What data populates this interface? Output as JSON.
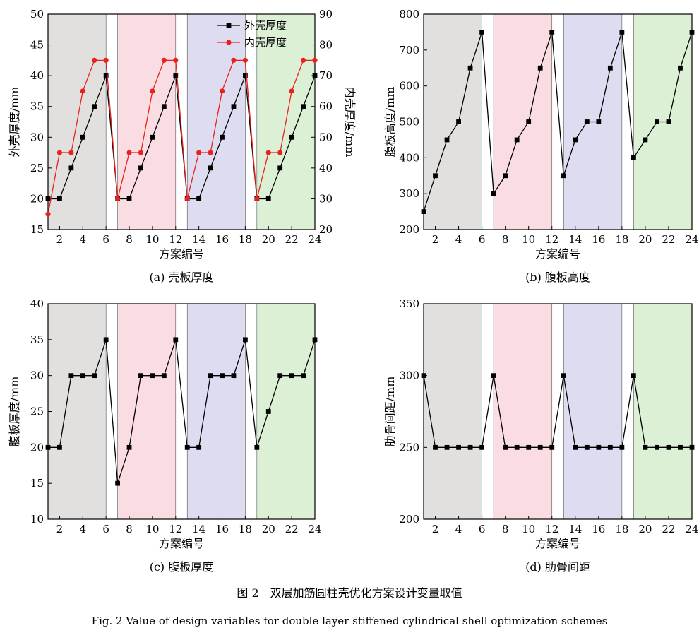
{
  "figure": {
    "caption_cn": "图 2　双层加筋圆柱壳优化方案设计变量取值",
    "caption_en": "Fig. 2    Value of design variables for double layer stiffened cylindrical shell optimization schemes"
  },
  "colors": {
    "band1": "#e2e0de",
    "band2": "#f9dde3",
    "band3": "#dedcf0",
    "band4": "#dcf0d6",
    "series_outer": "#000000",
    "series_inner": "#e8221e"
  },
  "chart_data": [
    {
      "id": "a",
      "type": "line",
      "caption": "(a) 壳板厚度",
      "xlabel": "方案编号",
      "ylabel": "外壳厚度/mm",
      "y2label": "内壳厚度/mm",
      "xlim": [
        1,
        24
      ],
      "ylim": [
        15,
        50
      ],
      "y2lim": [
        20,
        90
      ],
      "xticks": [
        2,
        4,
        6,
        8,
        10,
        12,
        14,
        16,
        18,
        20,
        22,
        24
      ],
      "yticks": [
        15,
        20,
        25,
        30,
        35,
        40,
        45,
        50
      ],
      "y2ticks": [
        20,
        30,
        40,
        50,
        60,
        70,
        80,
        90
      ],
      "bands": [
        [
          1,
          6
        ],
        [
          7,
          12
        ],
        [
          13,
          18
        ],
        [
          19,
          24
        ]
      ],
      "legend": "top-center",
      "x": [
        1,
        2,
        3,
        4,
        5,
        6,
        7,
        8,
        9,
        10,
        11,
        12,
        13,
        14,
        15,
        16,
        17,
        18,
        19,
        20,
        21,
        22,
        23,
        24
      ],
      "series": [
        {
          "name": "外壳厚度",
          "axis": "left",
          "marker": "square",
          "color": "#000000",
          "values": [
            20,
            20,
            25,
            30,
            35,
            40,
            20,
            20,
            25,
            30,
            35,
            40,
            20,
            20,
            25,
            30,
            35,
            40,
            20,
            20,
            25,
            30,
            35,
            40
          ]
        },
        {
          "name": "内壳厚度",
          "axis": "right",
          "marker": "circle",
          "color": "#e8221e",
          "values": [
            25,
            45,
            45,
            65,
            75,
            75,
            30,
            45,
            45,
            65,
            75,
            75,
            30,
            45,
            45,
            65,
            75,
            75,
            30,
            45,
            45,
            65,
            75,
            75
          ]
        }
      ]
    },
    {
      "id": "b",
      "type": "line",
      "caption": "(b) 腹板高度",
      "xlabel": "方案编号",
      "ylabel": "腹板高度/mm",
      "xlim": [
        1,
        24
      ],
      "ylim": [
        200,
        800
      ],
      "xticks": [
        2,
        4,
        6,
        8,
        10,
        12,
        14,
        16,
        18,
        20,
        22,
        24
      ],
      "yticks": [
        200,
        300,
        400,
        500,
        600,
        700,
        800
      ],
      "bands": [
        [
          1,
          6
        ],
        [
          7,
          12
        ],
        [
          13,
          18
        ],
        [
          19,
          24
        ]
      ],
      "x": [
        1,
        2,
        3,
        4,
        5,
        6,
        7,
        8,
        9,
        10,
        11,
        12,
        13,
        14,
        15,
        16,
        17,
        18,
        19,
        20,
        21,
        22,
        23,
        24
      ],
      "series": [
        {
          "axis": "left",
          "marker": "square",
          "color": "#000000",
          "values": [
            250,
            350,
            450,
            500,
            650,
            750,
            300,
            350,
            450,
            500,
            650,
            750,
            350,
            450,
            500,
            500,
            650,
            750,
            400,
            450,
            500,
            500,
            650,
            750
          ]
        }
      ]
    },
    {
      "id": "c",
      "type": "line",
      "caption": "(c) 腹板厚度",
      "xlabel": "方案编号",
      "ylabel": "腹板厚度/mm",
      "xlim": [
        1,
        24
      ],
      "ylim": [
        10,
        40
      ],
      "xticks": [
        2,
        4,
        6,
        8,
        10,
        12,
        14,
        16,
        18,
        20,
        22,
        24
      ],
      "yticks": [
        10,
        15,
        20,
        25,
        30,
        35,
        40
      ],
      "bands": [
        [
          1,
          6
        ],
        [
          7,
          12
        ],
        [
          13,
          18
        ],
        [
          19,
          24
        ]
      ],
      "x": [
        1,
        2,
        3,
        4,
        5,
        6,
        7,
        8,
        9,
        10,
        11,
        12,
        13,
        14,
        15,
        16,
        17,
        18,
        19,
        20,
        21,
        22,
        23,
        24
      ],
      "series": [
        {
          "axis": "left",
          "marker": "square",
          "color": "#000000",
          "values": [
            20,
            20,
            30,
            30,
            30,
            35,
            15,
            20,
            30,
            30,
            30,
            35,
            20,
            20,
            30,
            30,
            30,
            35,
            20,
            25,
            30,
            30,
            30,
            35
          ]
        }
      ]
    },
    {
      "id": "d",
      "type": "line",
      "caption": "(d) 肋骨间距",
      "xlabel": "方案编号",
      "ylabel": "肋骨间距/mm",
      "xlim": [
        1,
        24
      ],
      "ylim": [
        200,
        350
      ],
      "xticks": [
        2,
        4,
        6,
        8,
        10,
        12,
        14,
        16,
        18,
        20,
        22,
        24
      ],
      "yticks": [
        200,
        250,
        300,
        350
      ],
      "bands": [
        [
          1,
          6
        ],
        [
          7,
          12
        ],
        [
          13,
          18
        ],
        [
          19,
          24
        ]
      ],
      "x": [
        1,
        2,
        3,
        4,
        5,
        6,
        7,
        8,
        9,
        10,
        11,
        12,
        13,
        14,
        15,
        16,
        17,
        18,
        19,
        20,
        21,
        22,
        23,
        24
      ],
      "series": [
        {
          "axis": "left",
          "marker": "square",
          "color": "#000000",
          "values": [
            300,
            250,
            250,
            250,
            250,
            250,
            300,
            250,
            250,
            250,
            250,
            250,
            300,
            250,
            250,
            250,
            250,
            250,
            300,
            250,
            250,
            250,
            250,
            250
          ]
        }
      ]
    }
  ]
}
